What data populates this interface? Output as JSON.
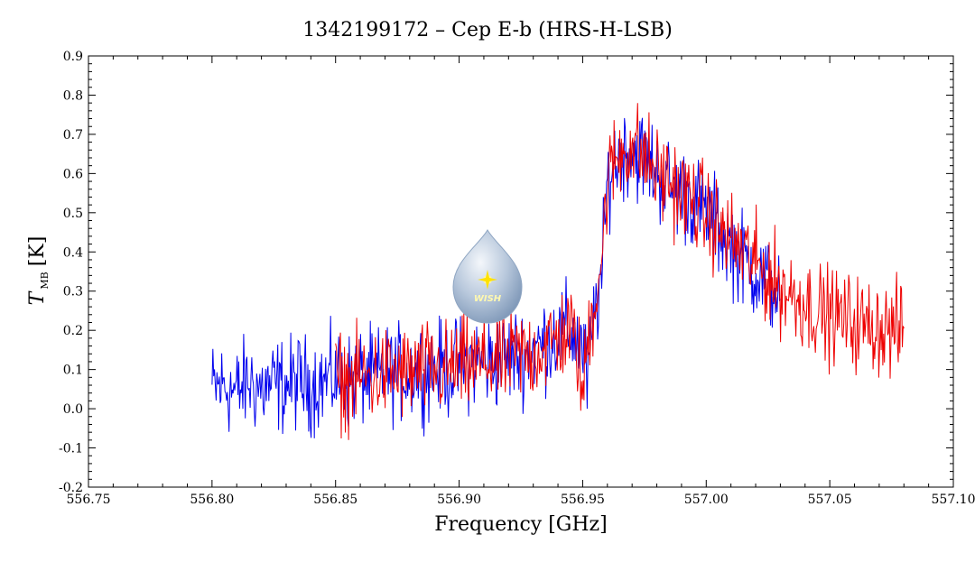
{
  "chart_data": {
    "type": "line",
    "title": "1342199172 – Cep E-b (HRS-H-LSB)",
    "xlabel": "Frequency [GHz]",
    "ylabel": {
      "main": "T",
      "subscript": "MB",
      "unit": "[K]"
    },
    "xlim": [
      556.75,
      557.1
    ],
    "ylim": [
      -0.2,
      0.9
    ],
    "x_ticks": [
      556.75,
      556.8,
      556.85,
      556.9,
      556.95,
      557.0,
      557.05,
      557.1
    ],
    "x_tick_labels": [
      "556.75",
      "556.80",
      "556.85",
      "556.90",
      "556.95",
      "557.00",
      "557.05",
      "557.10"
    ],
    "y_ticks": [
      -0.2,
      -0.1,
      0.0,
      0.1,
      0.2,
      0.3,
      0.4,
      0.5,
      0.6,
      0.7,
      0.8,
      0.9
    ],
    "y_tick_labels": [
      "-0.2",
      "-0.1",
      "0.0",
      "0.1",
      "0.2",
      "0.3",
      "0.4",
      "0.5",
      "0.6",
      "0.7",
      "0.8",
      "0.9"
    ],
    "grid": false,
    "series": [
      {
        "color": "#0000ee",
        "x": [
          556.8,
          556.805,
          556.81,
          556.815,
          556.82,
          556.825,
          556.83,
          556.835,
          556.84,
          556.845,
          556.85,
          556.855,
          556.86,
          556.865,
          556.87,
          556.875,
          556.88,
          556.885,
          556.89,
          556.895,
          556.9,
          556.905,
          556.91,
          556.915,
          556.92,
          556.925,
          556.93,
          556.935,
          556.94,
          556.945,
          556.95,
          556.952,
          556.955,
          556.958,
          556.96,
          556.962,
          556.965,
          556.968,
          556.97,
          556.972,
          556.975,
          556.978,
          556.98,
          556.985,
          556.99,
          556.995,
          557.0,
          557.005,
          557.01,
          557.015,
          557.02,
          557.025,
          557.03
        ],
        "y": [
          0.05,
          0.06,
          0.04,
          0.07,
          0.05,
          0.06,
          0.06,
          0.07,
          0.06,
          0.07,
          0.08,
          0.07,
          0.08,
          0.08,
          0.09,
          0.09,
          0.09,
          0.1,
          0.1,
          0.1,
          0.11,
          0.12,
          0.12,
          0.12,
          0.13,
          0.14,
          0.15,
          0.17,
          0.19,
          0.2,
          0.15,
          0.07,
          0.25,
          0.35,
          0.58,
          0.62,
          0.65,
          0.66,
          0.66,
          0.65,
          0.64,
          0.62,
          0.6,
          0.57,
          0.55,
          0.53,
          0.5,
          0.46,
          0.42,
          0.38,
          0.35,
          0.32,
          0.29
        ]
      },
      {
        "color": "#ee0000",
        "x": [
          556.85,
          556.855,
          556.86,
          556.865,
          556.87,
          556.875,
          556.88,
          556.885,
          556.89,
          556.895,
          556.9,
          556.905,
          556.91,
          556.915,
          556.92,
          556.925,
          556.93,
          556.935,
          556.94,
          556.945,
          556.948,
          556.95,
          556.952,
          556.955,
          556.958,
          556.96,
          556.962,
          556.965,
          556.968,
          556.97,
          556.972,
          556.975,
          556.978,
          556.98,
          556.985,
          556.99,
          556.995,
          557.0,
          557.005,
          557.01,
          557.015,
          557.02,
          557.025,
          557.03,
          557.035,
          557.04,
          557.045,
          557.05,
          557.055,
          557.06,
          557.065,
          557.07,
          557.075,
          557.08
        ],
        "y": [
          0.07,
          0.07,
          0.08,
          0.08,
          0.09,
          0.09,
          0.09,
          0.1,
          0.1,
          0.1,
          0.11,
          0.11,
          0.12,
          0.12,
          0.13,
          0.14,
          0.14,
          0.16,
          0.18,
          0.2,
          0.15,
          0.02,
          0.18,
          0.28,
          0.4,
          0.58,
          0.62,
          0.65,
          0.67,
          0.67,
          0.66,
          0.64,
          0.62,
          0.6,
          0.58,
          0.55,
          0.53,
          0.5,
          0.46,
          0.43,
          0.4,
          0.37,
          0.34,
          0.31,
          0.29,
          0.27,
          0.25,
          0.24,
          0.23,
          0.22,
          0.21,
          0.21,
          0.2,
          0.2
        ]
      }
    ]
  }
}
